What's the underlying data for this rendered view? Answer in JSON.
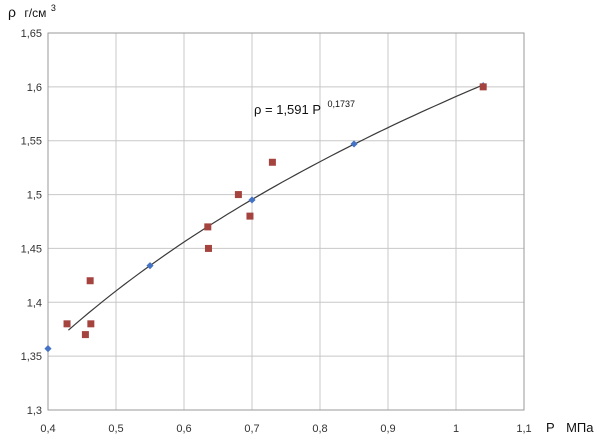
{
  "chart_data": {
    "type": "scatter",
    "ylabel_symbol": "ρ",
    "ylabel_unit": "г/см",
    "ylabel_unit_sup": "3",
    "xlabel_symbol": "P",
    "xlabel_unit": "МПа",
    "xlim": [
      0.4,
      1.1
    ],
    "ylim": [
      1.3,
      1.65
    ],
    "x_ticks": [
      "0,4",
      "0,5",
      "0,6",
      "0,7",
      "0,8",
      "0,9",
      "1",
      "1,1"
    ],
    "y_ticks": [
      "1,3",
      "1,35",
      "1,4",
      "1,45",
      "1,5",
      "1,55",
      "1,6",
      "1,65"
    ],
    "grid": true,
    "annotation": {
      "prefix": "ρ = 1,591 P",
      "exponent": "0,1737"
    },
    "trendline": {
      "form": "power",
      "coefficient": 1.591,
      "exponent": 0.1737,
      "x_range": [
        0.43,
        1.04
      ]
    },
    "series": [
      {
        "marker": "diamond",
        "color": "#4472C4",
        "points": [
          [
            0.4,
            1.357
          ],
          [
            0.55,
            1.434
          ],
          [
            0.7,
            1.495
          ],
          [
            0.85,
            1.547
          ],
          [
            1.04,
            1.601
          ]
        ]
      },
      {
        "marker": "square",
        "color": "#A5443F",
        "points": [
          [
            0.428,
            1.38
          ],
          [
            0.455,
            1.37
          ],
          [
            0.462,
            1.42
          ],
          [
            0.463,
            1.38
          ],
          [
            0.635,
            1.47
          ],
          [
            0.636,
            1.45
          ],
          [
            0.68,
            1.5
          ],
          [
            0.697,
            1.48
          ],
          [
            0.73,
            1.53
          ],
          [
            1.04,
            1.6
          ]
        ]
      }
    ]
  }
}
